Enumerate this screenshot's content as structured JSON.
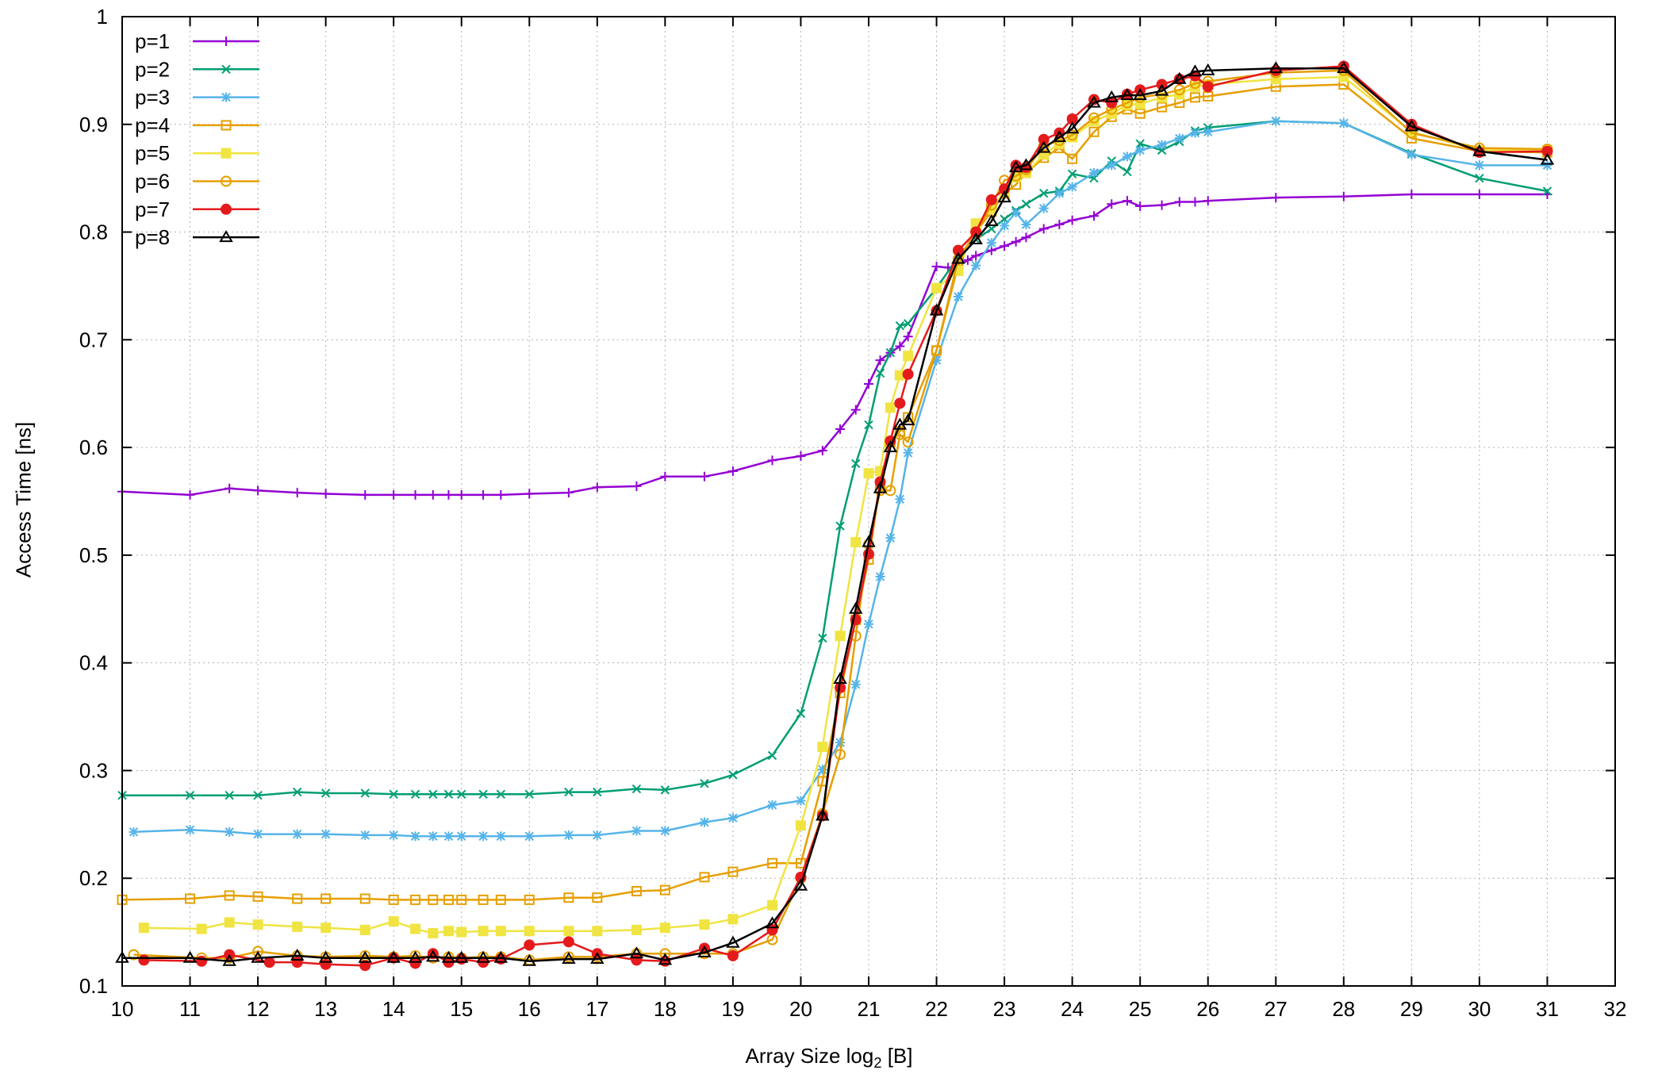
{
  "chart_data": {
    "type": "line",
    "xlabel": "Array Size log",
    "xlabel_sub": "2",
    "xlabel_unit": " [B]",
    "ylabel": "Access Time [ns]",
    "xlim": [
      10,
      32
    ],
    "ylim": [
      0.1,
      1.0
    ],
    "xticks": [
      10,
      11,
      12,
      13,
      14,
      15,
      16,
      17,
      18,
      19,
      20,
      21,
      22,
      23,
      24,
      25,
      26,
      27,
      28,
      29,
      30,
      31,
      32
    ],
    "yticks": [
      0.1,
      0.2,
      0.3,
      0.4,
      0.5,
      0.6,
      0.7,
      0.8,
      0.9,
      1
    ],
    "ytick_labels": [
      "0.1",
      "0.2",
      "0.3",
      "0.4",
      "0.5",
      "0.6",
      "0.7",
      "0.8",
      "0.9",
      "1"
    ],
    "grid": true,
    "legend_position": "top-left",
    "footer_text": "",
    "series": [
      {
        "name": "p=1",
        "color": "#9400d3",
        "marker": "plus",
        "x": [
          10,
          11,
          11.58,
          12,
          12.58,
          13,
          13.58,
          14,
          14.32,
          14.58,
          14.81,
          15,
          15.32,
          15.58,
          16,
          16.58,
          17,
          17.58,
          18,
          18.58,
          19,
          19.58,
          20,
          20.32,
          20.58,
          20.81,
          21,
          21.17,
          21.32,
          21.46,
          21.58,
          22,
          22.17,
          22.32,
          22.46,
          22.58,
          22.81,
          23,
          23.17,
          23.32,
          23.58,
          23.81,
          24,
          24.32,
          24.58,
          24.81,
          25,
          25.32,
          25.58,
          25.81,
          26,
          27,
          28,
          29,
          30,
          31
        ],
        "y": [
          0.559,
          0.556,
          0.562,
          0.56,
          0.558,
          0.557,
          0.556,
          0.556,
          0.556,
          0.556,
          0.556,
          0.556,
          0.556,
          0.556,
          0.557,
          0.558,
          0.563,
          0.564,
          0.573,
          0.573,
          0.578,
          0.588,
          0.592,
          0.597,
          0.617,
          0.635,
          0.659,
          0.681,
          0.688,
          0.694,
          0.703,
          0.768,
          0.767,
          0.768,
          0.774,
          0.778,
          0.783,
          0.787,
          0.791,
          0.795,
          0.803,
          0.807,
          0.811,
          0.815,
          0.826,
          0.829,
          0.824,
          0.825,
          0.828,
          0.828,
          0.829,
          0.832,
          0.833,
          0.835,
          0.835,
          0.835
        ]
      },
      {
        "name": "p=2",
        "color": "#009e73",
        "marker": "x",
        "x": [
          10,
          11,
          11.58,
          12,
          12.58,
          13,
          13.58,
          14,
          14.32,
          14.58,
          14.81,
          15,
          15.32,
          15.58,
          16,
          16.58,
          17,
          17.58,
          18,
          18.58,
          19,
          19.58,
          20,
          20.32,
          20.58,
          20.81,
          21,
          21.17,
          21.32,
          21.46,
          21.58,
          22,
          22.32,
          22.58,
          22.81,
          23,
          23.17,
          23.32,
          23.58,
          23.81,
          24,
          24.32,
          24.58,
          24.81,
          25,
          25.32,
          25.58,
          25.81,
          26,
          27,
          28,
          29,
          30,
          31
        ],
        "y": [
          0.277,
          0.277,
          0.277,
          0.277,
          0.28,
          0.279,
          0.279,
          0.278,
          0.278,
          0.278,
          0.278,
          0.278,
          0.278,
          0.278,
          0.278,
          0.28,
          0.28,
          0.283,
          0.282,
          0.288,
          0.296,
          0.314,
          0.353,
          0.423,
          0.527,
          0.585,
          0.621,
          0.669,
          0.688,
          0.713,
          0.715,
          0.748,
          0.777,
          0.793,
          0.803,
          0.812,
          0.82,
          0.826,
          0.836,
          0.838,
          0.854,
          0.85,
          0.866,
          0.856,
          0.882,
          0.876,
          0.884,
          0.894,
          0.897,
          0.903,
          0.901,
          0.873,
          0.85,
          0.838
        ]
      },
      {
        "name": "p=3",
        "color": "#56b4e9",
        "marker": "star",
        "x": [
          10.17,
          11,
          11.58,
          12,
          12.58,
          13,
          13.58,
          14,
          14.32,
          14.58,
          14.81,
          15,
          15.32,
          15.58,
          16,
          16.58,
          17,
          17.58,
          18,
          18.58,
          19,
          19.58,
          20,
          20.32,
          20.58,
          20.81,
          21,
          21.17,
          21.32,
          21.46,
          21.58,
          22,
          22.32,
          22.58,
          22.81,
          23,
          23.17,
          23.32,
          23.58,
          23.81,
          24,
          24.32,
          24.58,
          24.81,
          25,
          25.32,
          25.58,
          25.81,
          26,
          27,
          28,
          29,
          30,
          31
        ],
        "y": [
          0.243,
          0.245,
          0.243,
          0.241,
          0.241,
          0.241,
          0.24,
          0.24,
          0.239,
          0.239,
          0.239,
          0.239,
          0.239,
          0.239,
          0.239,
          0.24,
          0.24,
          0.244,
          0.244,
          0.252,
          0.256,
          0.268,
          0.272,
          0.301,
          0.326,
          0.38,
          0.436,
          0.48,
          0.516,
          0.552,
          0.595,
          0.681,
          0.74,
          0.769,
          0.79,
          0.806,
          0.818,
          0.807,
          0.822,
          0.836,
          0.842,
          0.855,
          0.862,
          0.87,
          0.876,
          0.881,
          0.887,
          0.892,
          0.893,
          0.903,
          0.901,
          0.872,
          0.862,
          0.862
        ]
      },
      {
        "name": "p=4",
        "color": "#e69f00",
        "marker": "square-open",
        "x": [
          10,
          11,
          11.58,
          12,
          12.58,
          13,
          13.58,
          14,
          14.32,
          14.58,
          14.81,
          15,
          15.32,
          15.58,
          16,
          16.58,
          17,
          17.58,
          18,
          18.58,
          19,
          19.58,
          20,
          20.32,
          20.58,
          20.81,
          21,
          21.17,
          21.32,
          21.46,
          21.58,
          22,
          22.32,
          22.58,
          22.81,
          23,
          23.17,
          23.32,
          23.58,
          23.81,
          24,
          24.32,
          24.58,
          24.81,
          25,
          25.32,
          25.58,
          25.81,
          26,
          27,
          28,
          29,
          30,
          31
        ],
        "y": [
          0.18,
          0.181,
          0.184,
          0.183,
          0.181,
          0.181,
          0.181,
          0.18,
          0.18,
          0.18,
          0.18,
          0.18,
          0.18,
          0.18,
          0.18,
          0.182,
          0.182,
          0.188,
          0.189,
          0.201,
          0.206,
          0.214,
          0.214,
          0.29,
          0.372,
          0.44,
          0.496,
          0.566,
          0.605,
          0.615,
          0.628,
          0.69,
          0.77,
          0.8,
          0.819,
          0.836,
          0.844,
          0.855,
          0.869,
          0.878,
          0.868,
          0.893,
          0.907,
          0.914,
          0.91,
          0.916,
          0.92,
          0.925,
          0.926,
          0.935,
          0.937,
          0.887,
          0.875,
          0.874
        ]
      },
      {
        "name": "p=5",
        "color": "#f0e442",
        "marker": "square-filled",
        "x": [
          10.32,
          11.17,
          11.58,
          12,
          12.58,
          13,
          13.58,
          14,
          14.32,
          14.58,
          14.81,
          15,
          15.32,
          15.58,
          16,
          16.58,
          17,
          17.58,
          18,
          18.58,
          19,
          19.58,
          20,
          20.32,
          20.58,
          20.81,
          21,
          21.17,
          21.32,
          21.46,
          21.58,
          22,
          22.32,
          22.58,
          22.81,
          23,
          23.17,
          23.32,
          23.58,
          23.81,
          24,
          24.32,
          24.58,
          24.81,
          25,
          25.32,
          25.58,
          25.81,
          26,
          27,
          28,
          29,
          30,
          31
        ],
        "y": [
          0.154,
          0.153,
          0.159,
          0.157,
          0.155,
          0.154,
          0.152,
          0.16,
          0.153,
          0.149,
          0.151,
          0.15,
          0.151,
          0.151,
          0.151,
          0.151,
          0.151,
          0.152,
          0.154,
          0.157,
          0.162,
          0.175,
          0.249,
          0.322,
          0.425,
          0.512,
          0.576,
          0.578,
          0.637,
          0.667,
          0.685,
          0.748,
          0.764,
          0.808,
          0.821,
          0.838,
          0.851,
          0.855,
          0.872,
          0.882,
          0.888,
          0.903,
          0.91,
          0.918,
          0.919,
          0.925,
          0.928,
          0.935,
          0.937,
          0.942,
          0.944,
          0.893,
          0.876,
          0.876
        ]
      },
      {
        "name": "p=6",
        "color": "#e69f00",
        "marker": "circle-open",
        "x": [
          10.17,
          11.17,
          11.58,
          12,
          12.58,
          13,
          13.58,
          14,
          14.32,
          14.58,
          14.81,
          15,
          15.32,
          15.58,
          16,
          16.58,
          17,
          17.58,
          18,
          18.58,
          19,
          19.58,
          20,
          20.32,
          20.58,
          20.81,
          21,
          21.17,
          21.32,
          21.46,
          21.58,
          22,
          22.32,
          22.58,
          22.81,
          23,
          23.17,
          23.32,
          23.58,
          23.81,
          24,
          24.32,
          24.58,
          24.81,
          25,
          25.32,
          25.58,
          25.81,
          26,
          27,
          28,
          29,
          30,
          31
        ],
        "y": [
          0.129,
          0.126,
          0.126,
          0.132,
          0.128,
          0.127,
          0.128,
          0.127,
          0.128,
          0.126,
          0.127,
          0.126,
          0.127,
          0.127,
          0.124,
          0.127,
          0.127,
          0.13,
          0.13,
          0.13,
          0.13,
          0.143,
          0.2,
          0.26,
          0.315,
          0.425,
          0.51,
          0.56,
          0.56,
          0.612,
          0.605,
          0.69,
          0.775,
          0.8,
          0.825,
          0.848,
          0.852,
          0.858,
          0.88,
          0.885,
          0.89,
          0.906,
          0.914,
          0.92,
          0.925,
          0.928,
          0.932,
          0.938,
          0.94,
          0.948,
          0.95,
          0.892,
          0.878,
          0.877
        ]
      },
      {
        "name": "p=7",
        "color": "#e41a1c",
        "marker": "circle-filled",
        "x": [
          10.32,
          11.17,
          11.58,
          12.17,
          12.58,
          13,
          13.58,
          14,
          14.32,
          14.58,
          14.81,
          15,
          15.32,
          15.58,
          16,
          16.58,
          17,
          17.58,
          18,
          18.58,
          19,
          19.58,
          20,
          20.32,
          20.58,
          20.81,
          21,
          21.17,
          21.32,
          21.46,
          21.58,
          22,
          22.32,
          22.58,
          22.81,
          23,
          23.17,
          23.32,
          23.58,
          23.81,
          24,
          24.32,
          24.58,
          24.81,
          25,
          25.32,
          25.58,
          25.81,
          26,
          27,
          28,
          29,
          30,
          31
        ],
        "y": [
          0.124,
          0.123,
          0.129,
          0.122,
          0.122,
          0.12,
          0.119,
          0.126,
          0.121,
          0.13,
          0.122,
          0.125,
          0.122,
          0.125,
          0.138,
          0.141,
          0.13,
          0.124,
          0.123,
          0.135,
          0.128,
          0.152,
          0.201,
          0.258,
          0.377,
          0.44,
          0.501,
          0.568,
          0.606,
          0.641,
          0.668,
          0.727,
          0.783,
          0.8,
          0.83,
          0.84,
          0.862,
          0.86,
          0.886,
          0.892,
          0.905,
          0.923,
          0.92,
          0.928,
          0.932,
          0.937,
          0.942,
          0.945,
          0.935,
          0.95,
          0.954,
          0.9,
          0.874,
          0.875
        ]
      },
      {
        "name": "p=8",
        "color": "#000000",
        "marker": "triangle-open",
        "x": [
          10,
          11,
          11.58,
          12,
          12.58,
          13,
          13.58,
          14,
          14.32,
          14.58,
          14.81,
          15,
          15.32,
          15.58,
          16,
          16.58,
          17,
          17.58,
          18,
          18.58,
          19,
          19.58,
          20,
          20.32,
          20.58,
          20.81,
          21,
          21.17,
          21.32,
          21.46,
          21.58,
          22,
          22.32,
          22.58,
          22.81,
          23,
          23.17,
          23.32,
          23.58,
          23.81,
          24,
          24.32,
          24.58,
          24.81,
          25,
          25.32,
          25.58,
          25.81,
          26,
          27,
          28,
          29,
          30,
          31
        ],
        "y": [
          0.126,
          0.126,
          0.123,
          0.126,
          0.128,
          0.126,
          0.126,
          0.126,
          0.126,
          0.127,
          0.126,
          0.126,
          0.126,
          0.126,
          0.123,
          0.125,
          0.125,
          0.13,
          0.124,
          0.131,
          0.14,
          0.158,
          0.193,
          0.258,
          0.385,
          0.45,
          0.512,
          0.562,
          0.6,
          0.621,
          0.625,
          0.727,
          0.775,
          0.793,
          0.81,
          0.832,
          0.86,
          0.862,
          0.878,
          0.888,
          0.896,
          0.92,
          0.925,
          0.927,
          0.927,
          0.931,
          0.942,
          0.949,
          0.95,
          0.952,
          0.952,
          0.898,
          0.875,
          0.867
        ]
      }
    ]
  }
}
